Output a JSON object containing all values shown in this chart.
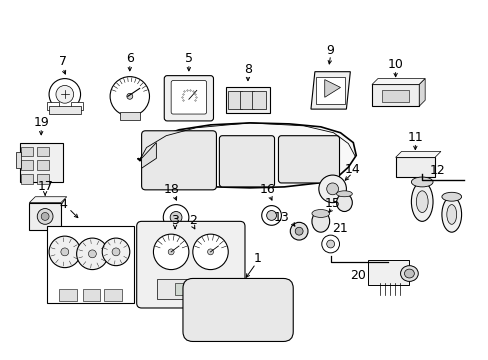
{
  "bg": "#ffffff",
  "lw": 0.8,
  "fig_w": 4.89,
  "fig_h": 3.6,
  "dpi": 100
}
